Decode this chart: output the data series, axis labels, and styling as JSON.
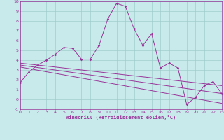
{
  "xlabel": "Windchill (Refroidissement éolien,°C)",
  "bg_color": "#c8eaea",
  "grid_color": "#a0cccc",
  "line_color": "#993399",
  "xlim": [
    0,
    23
  ],
  "ylim": [
    -1,
    10
  ],
  "xticks": [
    0,
    1,
    2,
    3,
    4,
    5,
    6,
    7,
    8,
    9,
    10,
    11,
    12,
    13,
    14,
    15,
    16,
    17,
    18,
    19,
    20,
    21,
    22,
    23
  ],
  "yticks": [
    -1,
    0,
    1,
    2,
    3,
    4,
    5,
    6,
    7,
    8,
    9,
    10
  ],
  "main_x": [
    0,
    1,
    2,
    3,
    4,
    5,
    6,
    7,
    8,
    9,
    10,
    11,
    12,
    13,
    14,
    15,
    16,
    17,
    18,
    19,
    20,
    21,
    22,
    23
  ],
  "main_y": [
    1.7,
    2.8,
    3.5,
    4.0,
    4.6,
    5.3,
    5.2,
    4.1,
    4.1,
    5.5,
    8.2,
    9.8,
    9.5,
    7.2,
    5.5,
    6.7,
    3.2,
    3.7,
    3.2,
    -0.5,
    0.2,
    1.4,
    1.8,
    0.6
  ],
  "trend1_x": [
    0,
    23
  ],
  "trend1_y": [
    3.7,
    1.4
  ],
  "trend2_x": [
    0,
    23
  ],
  "trend2_y": [
    3.5,
    0.6
  ],
  "trend3_x": [
    0,
    23
  ],
  "trend3_y": [
    3.3,
    -0.4
  ],
  "figw": 3.2,
  "figh": 2.0,
  "dpi": 100
}
